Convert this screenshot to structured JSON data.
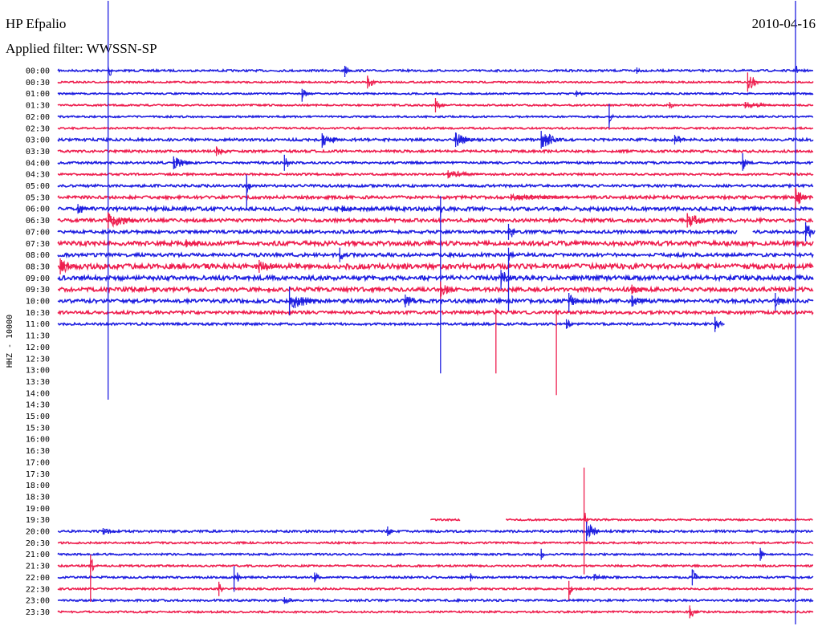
{
  "header": {
    "station": "HP Efpalio",
    "date": "2010-04-16",
    "filter_label": "Applied filter:",
    "filter_name": "WWSSN-SP"
  },
  "colors": {
    "blue": "#1f1fe0",
    "red": "#ee1f4f",
    "text": "#000000"
  },
  "chart_data": {
    "type": "line",
    "subtype": "helicorder",
    "title": "HP Efpalio",
    "channel_label": "HHZ - 10000",
    "row_labels": [
      "00:00",
      "00:30",
      "01:00",
      "01:30",
      "02:00",
      "02:30",
      "03:00",
      "03:30",
      "04:00",
      "04:30",
      "05:00",
      "05:30",
      "06:00",
      "06:30",
      "07:00",
      "07:30",
      "08:00",
      "08:30",
      "09:00",
      "09:30",
      "10:00",
      "10:30",
      "11:00",
      "11:30",
      "12:00",
      "12:30",
      "13:00",
      "13:30",
      "14:00",
      "14:30",
      "15:00",
      "15:30",
      "16:00",
      "16:30",
      "17:00",
      "17:30",
      "18:00",
      "18:30",
      "19:00",
      "19:30",
      "20:00",
      "20:30",
      "21:00",
      "21:30",
      "22:00",
      "22:30",
      "23:00",
      "23:30"
    ],
    "row_colors": [
      "blue",
      "red"
    ],
    "row_minutes": 30,
    "traces": [
      {
        "row": "00:00",
        "start": 0,
        "end": 30,
        "noise": 1.2
      },
      {
        "row": "00:30",
        "start": 0,
        "end": 30,
        "noise": 1.0
      },
      {
        "row": "01:00",
        "start": 0,
        "end": 30,
        "noise": 1.0
      },
      {
        "row": "01:30",
        "start": 0,
        "end": 30,
        "noise": 1.0
      },
      {
        "row": "02:00",
        "start": 0,
        "end": 30,
        "noise": 1.0
      },
      {
        "row": "02:30",
        "start": 0,
        "end": 30,
        "noise": 1.1
      },
      {
        "row": "03:00",
        "start": 0,
        "end": 30,
        "noise": 1.6
      },
      {
        "row": "03:30",
        "start": 0,
        "end": 30,
        "noise": 1.4
      },
      {
        "row": "04:00",
        "start": 0,
        "end": 30,
        "noise": 1.3
      },
      {
        "row": "04:30",
        "start": 0,
        "end": 30,
        "noise": 1.2
      },
      {
        "row": "05:00",
        "start": 0,
        "end": 30,
        "noise": 1.5
      },
      {
        "row": "05:30",
        "start": 0,
        "end": 30,
        "noise": 1.8
      },
      {
        "row": "06:00",
        "start": 0,
        "end": 30,
        "noise": 2.2
      },
      {
        "row": "06:30",
        "start": 0,
        "end": 30,
        "noise": 2.0
      },
      {
        "row": "07:00",
        "start": 0,
        "end": 30,
        "noise": 1.8
      },
      {
        "row": "07:30",
        "start": 0,
        "end": 30,
        "noise": 2.6
      },
      {
        "row": "08:00",
        "start": 0,
        "end": 30,
        "noise": 2.0
      },
      {
        "row": "08:30",
        "start": 0,
        "end": 30,
        "noise": 3.0
      },
      {
        "row": "09:00",
        "start": 0,
        "end": 30,
        "noise": 2.6
      },
      {
        "row": "09:30",
        "start": 0,
        "end": 30,
        "noise": 2.4
      },
      {
        "row": "10:00",
        "start": 0,
        "end": 30,
        "noise": 2.2
      },
      {
        "row": "10:30",
        "start": 0,
        "end": 30,
        "noise": 1.8
      },
      {
        "row": "11:00",
        "start": 0,
        "end": 26.3,
        "noise": 1.4
      },
      {
        "row": "19:30",
        "start": 14.8,
        "end": 16.0,
        "noise": 1.0
      },
      {
        "row": "19:30",
        "start": 17.8,
        "end": 30,
        "noise": 1.0
      },
      {
        "row": "20:00",
        "start": 0,
        "end": 30,
        "noise": 1.3
      },
      {
        "row": "20:30",
        "start": 0,
        "end": 30,
        "noise": 1.1
      },
      {
        "row": "21:00",
        "start": 0,
        "end": 30,
        "noise": 1.1
      },
      {
        "row": "21:30",
        "start": 0,
        "end": 30,
        "noise": 1.1
      },
      {
        "row": "22:00",
        "start": 0,
        "end": 30,
        "noise": 1.2
      },
      {
        "row": "22:30",
        "start": 0,
        "end": 30,
        "noise": 1.1
      },
      {
        "row": "23:00",
        "start": 0,
        "end": 30,
        "noise": 1.2
      },
      {
        "row": "23:30",
        "start": 0,
        "end": 30,
        "noise": 1.1
      }
    ],
    "gaps": [
      {
        "row": "07:00",
        "start": 27.0,
        "end": 27.6
      }
    ],
    "events": [
      {
        "row": "00:00",
        "minute": 2.0,
        "up": 87,
        "down": 410,
        "duration": 0.2
      },
      {
        "row": "00:00",
        "minute": 11.4,
        "up": 6,
        "down": 8,
        "duration": 0.3
      },
      {
        "row": "00:00",
        "minute": 23.0,
        "up": 4,
        "down": 4,
        "duration": 0.3
      },
      {
        "row": "00:00",
        "minute": 29.3,
        "up": 87,
        "down": 690,
        "duration": 0.1
      },
      {
        "row": "00:30",
        "minute": 12.3,
        "up": 8,
        "down": 8,
        "duration": 0.4
      },
      {
        "row": "00:30",
        "minute": 27.4,
        "up": 12,
        "down": 12,
        "duration": 0.5
      },
      {
        "row": "01:00",
        "minute": 9.7,
        "up": 6,
        "down": 10,
        "duration": 0.4
      },
      {
        "row": "01:00",
        "minute": 20.6,
        "up": 4,
        "down": 4,
        "duration": 0.4
      },
      {
        "row": "01:30",
        "minute": 15.0,
        "up": 9,
        "down": 9,
        "duration": 0.4
      },
      {
        "row": "01:30",
        "minute": 24.3,
        "up": 4,
        "down": 4,
        "duration": 0.3
      },
      {
        "row": "01:30",
        "minute": 27.3,
        "up": 4,
        "down": 4,
        "duration": 1.5
      },
      {
        "row": "02:00",
        "minute": 21.9,
        "up": 16,
        "down": 14,
        "duration": 0.2
      },
      {
        "row": "03:00",
        "minute": 10.5,
        "up": 8,
        "down": 10,
        "duration": 0.8
      },
      {
        "row": "03:00",
        "minute": 15.8,
        "up": 9,
        "down": 9,
        "duration": 0.8
      },
      {
        "row": "03:00",
        "minute": 19.2,
        "up": 11,
        "down": 11,
        "duration": 0.8
      },
      {
        "row": "03:00",
        "minute": 24.5,
        "up": 6,
        "down": 6,
        "duration": 0.6
      },
      {
        "row": "03:30",
        "minute": 6.3,
        "up": 6,
        "down": 6,
        "duration": 0.6
      },
      {
        "row": "04:00",
        "minute": 4.6,
        "up": 8,
        "down": 8,
        "duration": 0.8
      },
      {
        "row": "04:00",
        "minute": 9.0,
        "up": 10,
        "down": 10,
        "duration": 0.3
      },
      {
        "row": "04:00",
        "minute": 27.2,
        "up": 12,
        "down": 10,
        "duration": 0.3
      },
      {
        "row": "04:30",
        "minute": 15.5,
        "up": 5,
        "down": 5,
        "duration": 1.4
      },
      {
        "row": "05:00",
        "minute": 7.5,
        "up": 14,
        "down": 26,
        "duration": 0.2
      },
      {
        "row": "05:30",
        "minute": 18.0,
        "up": 4,
        "down": 4,
        "duration": 2.8
      },
      {
        "row": "05:30",
        "minute": 29.3,
        "up": 12,
        "down": 14,
        "duration": 0.5
      },
      {
        "row": "06:00",
        "minute": 0.8,
        "up": 6,
        "down": 6,
        "duration": 0.6
      },
      {
        "row": "06:00",
        "minute": 11.3,
        "up": 4,
        "down": 4,
        "duration": 0.8
      },
      {
        "row": "06:00",
        "minute": 15.2,
        "up": 16,
        "down": 205,
        "duration": 0.1
      },
      {
        "row": "06:30",
        "minute": 2.0,
        "up": 10,
        "down": 10,
        "duration": 1.2
      },
      {
        "row": "06:30",
        "minute": 25.0,
        "up": 9,
        "down": 9,
        "duration": 1.0
      },
      {
        "row": "07:00",
        "minute": 17.9,
        "up": 10,
        "down": 10,
        "duration": 0.4
      },
      {
        "row": "07:00",
        "minute": 29.7,
        "up": 12,
        "down": 12,
        "duration": 0.4
      },
      {
        "row": "07:30",
        "minute": 5.1,
        "up": 5,
        "down": 5,
        "duration": 0.6
      },
      {
        "row": "08:00",
        "minute": 11.2,
        "up": 9,
        "down": 9,
        "duration": 0.3
      },
      {
        "row": "08:00",
        "minute": 17.9,
        "up": 9,
        "down": 70,
        "duration": 0.1
      },
      {
        "row": "08:30",
        "minute": 0.1,
        "up": 10,
        "down": 10,
        "duration": 0.6
      },
      {
        "row": "08:30",
        "minute": 8.0,
        "up": 8,
        "down": 8,
        "duration": 0.9
      },
      {
        "row": "09:00",
        "minute": 17.6,
        "up": 10,
        "down": 14,
        "duration": 0.6
      },
      {
        "row": "09:30",
        "minute": 15.2,
        "up": 10,
        "down": 12,
        "duration": 0.6
      },
      {
        "row": "09:30",
        "minute": 22.8,
        "up": 6,
        "down": 6,
        "duration": 0.5
      },
      {
        "row": "10:00",
        "minute": 9.2,
        "up": 18,
        "down": 18,
        "duration": 1.2
      },
      {
        "row": "10:00",
        "minute": 13.8,
        "up": 8,
        "down": 8,
        "duration": 0.6
      },
      {
        "row": "10:00",
        "minute": 20.3,
        "up": 10,
        "down": 14,
        "duration": 0.5
      },
      {
        "row": "10:00",
        "minute": 22.8,
        "up": 7,
        "down": 7,
        "duration": 0.6
      },
      {
        "row": "10:00",
        "minute": 28.5,
        "up": 10,
        "down": 12,
        "duration": 0.4
      },
      {
        "row": "10:30",
        "minute": 17.4,
        "up": 5,
        "down": 76,
        "duration": 0.1
      },
      {
        "row": "10:30",
        "minute": 19.8,
        "up": 4,
        "down": 103,
        "duration": 0.1
      },
      {
        "row": "11:00",
        "minute": 20.2,
        "up": 6,
        "down": 6,
        "duration": 0.4
      },
      {
        "row": "11:00",
        "minute": 26.1,
        "up": 9,
        "down": 10,
        "duration": 0.4
      },
      {
        "row": "19:30",
        "minute": 20.9,
        "up": 65,
        "down": 68,
        "duration": 0.2
      },
      {
        "row": "20:00",
        "minute": 1.8,
        "up": 4,
        "down": 4,
        "duration": 0.6
      },
      {
        "row": "20:00",
        "minute": 13.1,
        "up": 6,
        "down": 6,
        "duration": 0.3
      },
      {
        "row": "20:00",
        "minute": 21.0,
        "up": 12,
        "down": 12,
        "duration": 0.6
      },
      {
        "row": "21:00",
        "minute": 27.9,
        "up": 8,
        "down": 8,
        "duration": 0.2
      },
      {
        "row": "21:00",
        "minute": 19.2,
        "up": 7,
        "down": 7,
        "duration": 0.2
      },
      {
        "row": "21:30",
        "minute": 1.3,
        "up": 14,
        "down": 45,
        "duration": 0.2
      },
      {
        "row": "22:00",
        "minute": 7.0,
        "up": 14,
        "down": 18,
        "duration": 0.3
      },
      {
        "row": "22:00",
        "minute": 10.2,
        "up": 6,
        "down": 6,
        "duration": 0.3
      },
      {
        "row": "22:00",
        "minute": 16.4,
        "up": 5,
        "down": 5,
        "duration": 0.2
      },
      {
        "row": "22:00",
        "minute": 21.3,
        "up": 4,
        "down": 4,
        "duration": 0.8
      },
      {
        "row": "22:00",
        "minute": 25.2,
        "up": 10,
        "down": 10,
        "duration": 0.3
      },
      {
        "row": "22:30",
        "minute": 6.4,
        "up": 9,
        "down": 9,
        "duration": 0.2
      },
      {
        "row": "22:30",
        "minute": 20.3,
        "up": 10,
        "down": 14,
        "duration": 0.2
      },
      {
        "row": "23:00",
        "minute": 9.0,
        "up": 4,
        "down": 4,
        "duration": 0.6
      },
      {
        "row": "23:30",
        "minute": 25.1,
        "up": 8,
        "down": 8,
        "duration": 0.4
      }
    ]
  }
}
